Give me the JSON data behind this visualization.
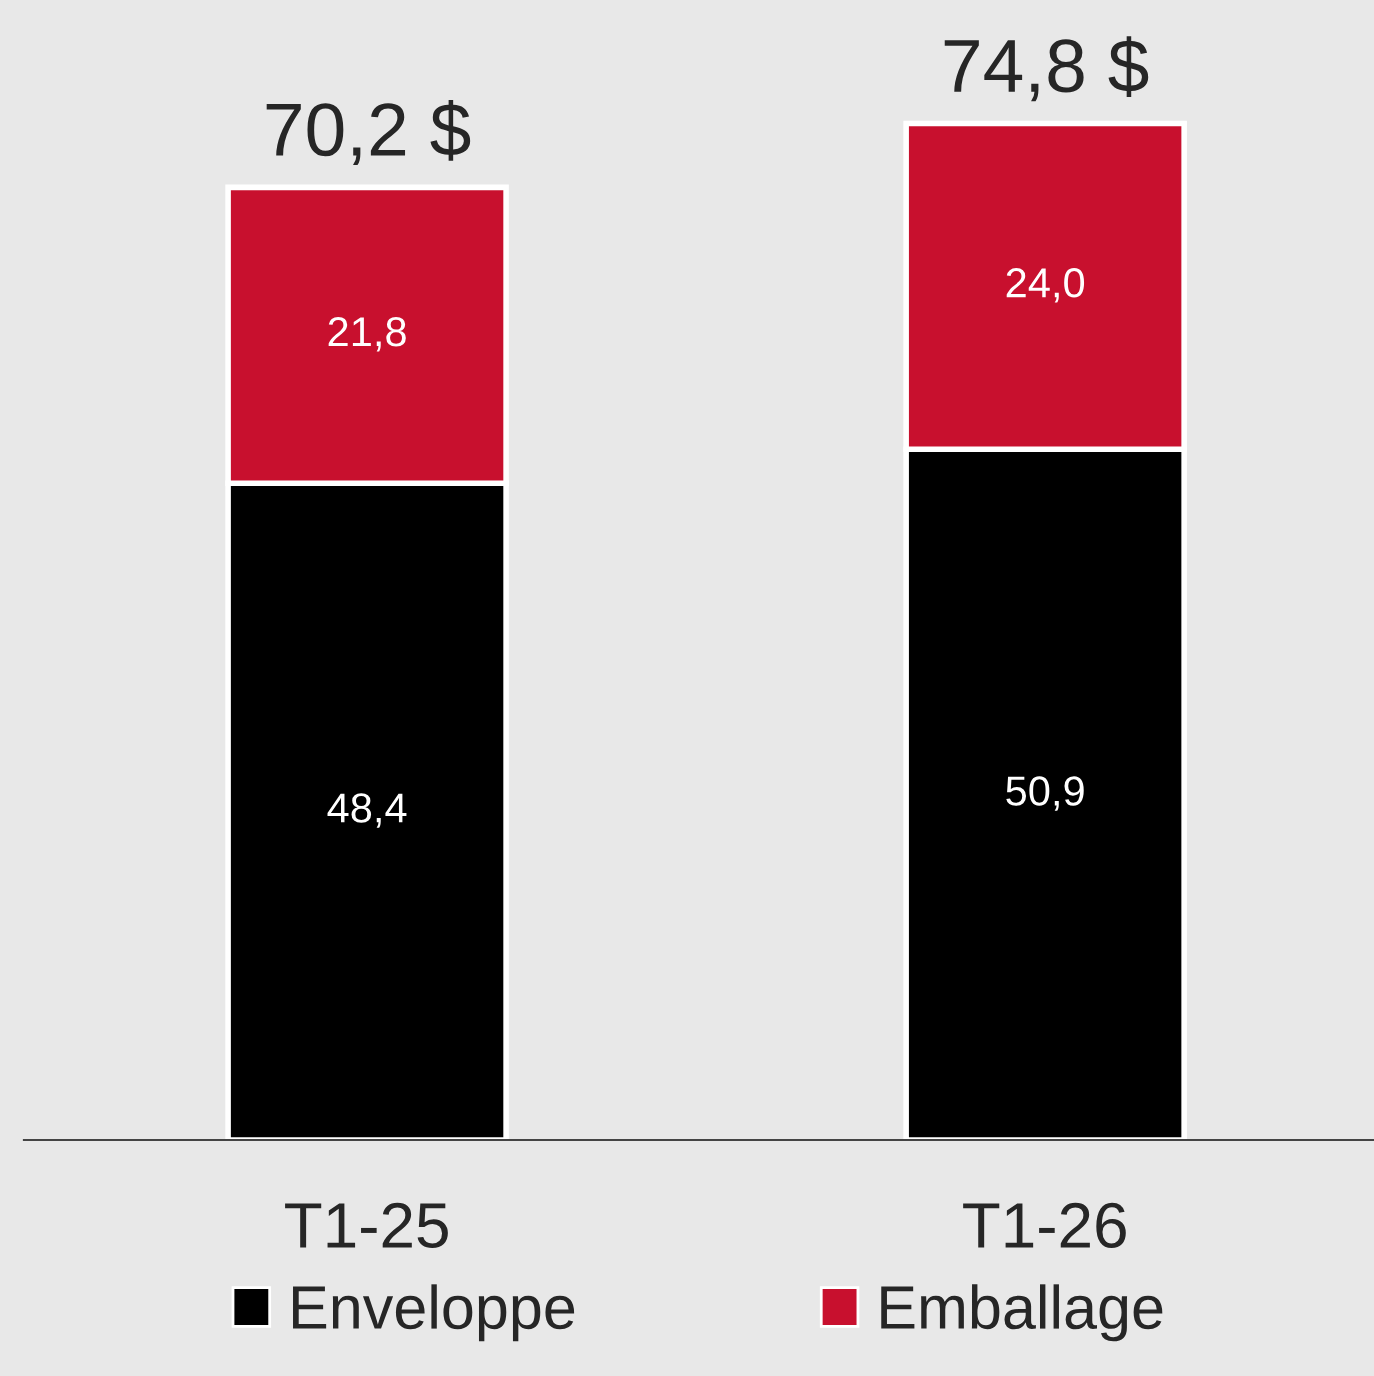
{
  "chart_data": {
    "type": "bar",
    "stacked": true,
    "categories": [
      "T1-25",
      "T1-26"
    ],
    "series": [
      {
        "name": "Enveloppe",
        "color": "#000000",
        "values": [
          48.4,
          50.9
        ],
        "value_labels": [
          "48,4",
          "50,9"
        ]
      },
      {
        "name": "Emballage",
        "color": "#c8102e",
        "values": [
          21.8,
          24.0
        ],
        "value_labels": [
          "21,8",
          "24,0"
        ]
      }
    ],
    "totals": [
      "70,2 $",
      "74,8 $"
    ],
    "ylim": [
      0,
      83.5
    ],
    "legend": "bottom",
    "grid": false
  }
}
